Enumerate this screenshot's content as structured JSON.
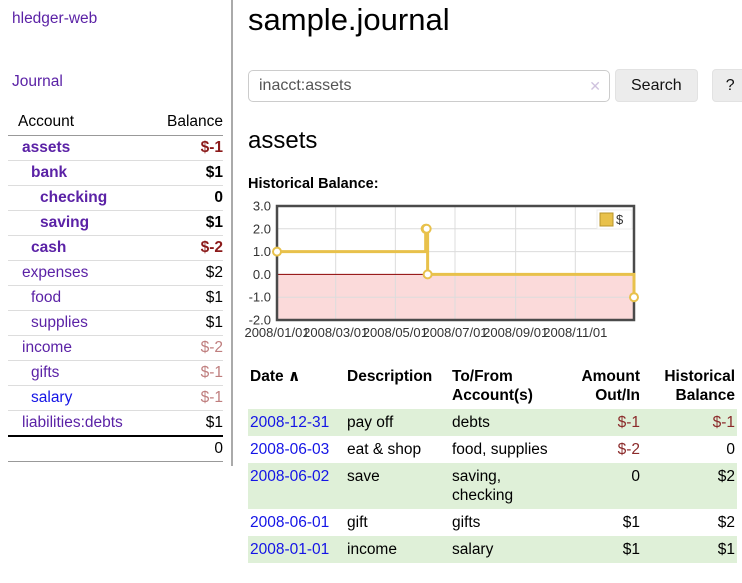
{
  "sidebar": {
    "brand": "hledger-web",
    "journal_label": "Journal",
    "account_header": "Account",
    "balance_header": "Balance",
    "accounts": [
      {
        "name": "assets",
        "indent": 0,
        "balance": "$-1",
        "bold": true,
        "balance_color": "neg",
        "name_color": "purple"
      },
      {
        "name": "bank",
        "indent": 1,
        "balance": "$1",
        "bold": true,
        "balance_color": "",
        "name_color": "purple"
      },
      {
        "name": "checking",
        "indent": 2,
        "balance": "0",
        "bold": true,
        "balance_color": "",
        "name_color": "purple"
      },
      {
        "name": "saving",
        "indent": 2,
        "balance": "$1",
        "bold": true,
        "balance_color": "",
        "name_color": "purple"
      },
      {
        "name": "cash",
        "indent": 1,
        "balance": "$-2",
        "bold": true,
        "balance_color": "neg",
        "name_color": "purple"
      },
      {
        "name": "expenses",
        "indent": 0,
        "balance": "$2",
        "bold": false,
        "balance_color": "",
        "name_color": "purple"
      },
      {
        "name": "food",
        "indent": 1,
        "balance": "$1",
        "bold": false,
        "balance_color": "",
        "name_color": "purple"
      },
      {
        "name": "supplies",
        "indent": 1,
        "balance": "$1",
        "bold": false,
        "balance_color": "",
        "name_color": "purple"
      },
      {
        "name": "income",
        "indent": 0,
        "balance": "$-2",
        "bold": false,
        "balance_color": "rose",
        "name_color": "purple"
      },
      {
        "name": "gifts",
        "indent": 1,
        "balance": "$-1",
        "bold": false,
        "balance_color": "rose",
        "name_color": "purple"
      },
      {
        "name": "salary",
        "indent": 1,
        "balance": "$-1",
        "bold": false,
        "balance_color": "rose",
        "name_color": "blue"
      },
      {
        "name": "liabilities:debts",
        "indent": 0,
        "balance": "$1",
        "bold": false,
        "balance_color": "",
        "name_color": "purple"
      }
    ],
    "total": "0"
  },
  "header": {
    "title": "sample.journal"
  },
  "search": {
    "value": "inacct:assets",
    "clear_icon": "✕",
    "button_label": "Search",
    "help_label": "?"
  },
  "main": {
    "account_title": "assets",
    "chart_label": "Historical Balance:"
  },
  "chart_data": {
    "type": "line",
    "title": "Historical Balance",
    "legend_label": "$",
    "ylim": [
      -2.0,
      3.0
    ],
    "yticks": [
      3.0,
      2.0,
      1.0,
      0.0,
      -1.0,
      -2.0
    ],
    "x_domain": [
      0,
      365
    ],
    "xticks": [
      {
        "label": "2008/01/01",
        "day": 0
      },
      {
        "label": "2008/03/01",
        "day": 60
      },
      {
        "label": "2008/05/01",
        "day": 121
      },
      {
        "label": "2008/07/01",
        "day": 182
      },
      {
        "label": "2008/09/01",
        "day": 244
      },
      {
        "label": "2008/11/01",
        "day": 305
      }
    ],
    "step": true,
    "points": [
      {
        "date": "2008-01-01",
        "day": 0,
        "value": 1
      },
      {
        "date": "2008-06-01",
        "day": 152,
        "value": 2
      },
      {
        "date": "2008-06-02",
        "day": 153,
        "value": 2
      },
      {
        "date": "2008-06-03",
        "day": 154,
        "value": 0
      },
      {
        "date": "2008-12-31",
        "day": 365,
        "value": -1
      }
    ],
    "colors": {
      "line": "#e8c14b",
      "marker_fill": "#ffffff",
      "negative_region": "#fbdada",
      "zero_line": "#8b0000",
      "grid": "#dcdcdc",
      "border": "#4a4a4a",
      "legend_swatch_border": "#b8952b"
    }
  },
  "register": {
    "columns": [
      {
        "label": "Date",
        "label2": "",
        "align": "left",
        "sort_arrow": "∧"
      },
      {
        "label": "Description",
        "label2": "",
        "align": "left"
      },
      {
        "label": "To/From",
        "label2": "Account(s)",
        "align": "left"
      },
      {
        "label": "Amount",
        "label2": "Out/In",
        "align": "right"
      },
      {
        "label": "Historical",
        "label2": "Balance",
        "align": "right"
      }
    ],
    "rows": [
      {
        "date": "2008-12-31",
        "description": "pay off",
        "accounts": "debts",
        "amount": "$-1",
        "amount_negative": true,
        "balance": "$-1",
        "balance_negative": true
      },
      {
        "date": "2008-06-03",
        "description": "eat & shop",
        "accounts": "food, supplies",
        "amount": "$-2",
        "amount_negative": true,
        "balance": "0",
        "balance_negative": false
      },
      {
        "date": "2008-06-02",
        "description": "save",
        "accounts": "saving, checking",
        "amount": "0",
        "amount_negative": false,
        "balance": "$2",
        "balance_negative": false
      },
      {
        "date": "2008-06-01",
        "description": "gift",
        "accounts": "gifts",
        "amount": "$1",
        "amount_negative": false,
        "balance": "$2",
        "balance_negative": false
      },
      {
        "date": "2008-01-01",
        "description": "income",
        "accounts": "salary",
        "amount": "$1",
        "amount_negative": false,
        "balance": "$1",
        "balance_negative": false
      }
    ]
  }
}
